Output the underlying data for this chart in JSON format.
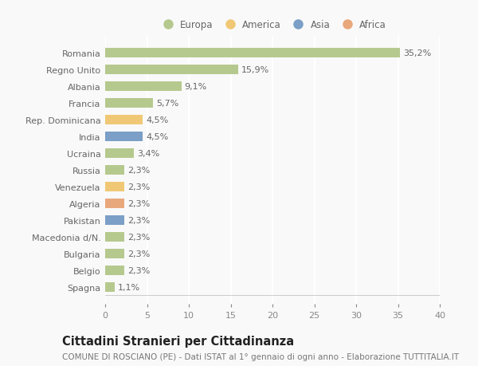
{
  "categories": [
    "Romania",
    "Regno Unito",
    "Albania",
    "Francia",
    "Rep. Dominicana",
    "India",
    "Ucraina",
    "Russia",
    "Venezuela",
    "Algeria",
    "Pakistan",
    "Macedonia d/N.",
    "Bulgaria",
    "Belgio",
    "Spagna"
  ],
  "values": [
    35.2,
    15.9,
    9.1,
    5.7,
    4.5,
    4.5,
    3.4,
    2.3,
    2.3,
    2.3,
    2.3,
    2.3,
    2.3,
    2.3,
    1.1
  ],
  "labels": [
    "35,2%",
    "15,9%",
    "9,1%",
    "5,7%",
    "4,5%",
    "4,5%",
    "3,4%",
    "2,3%",
    "2,3%",
    "2,3%",
    "2,3%",
    "2,3%",
    "2,3%",
    "2,3%",
    "1,1%"
  ],
  "colors": [
    "#b5c98e",
    "#b5c98e",
    "#b5c98e",
    "#b5c98e",
    "#f0c875",
    "#7b9fc7",
    "#b5c98e",
    "#b5c98e",
    "#f0c875",
    "#e8a87c",
    "#7b9fc7",
    "#b5c98e",
    "#b5c98e",
    "#b5c98e",
    "#b5c98e"
  ],
  "legend_labels": [
    "Europa",
    "America",
    "Asia",
    "Africa"
  ],
  "legend_colors": [
    "#b5c98e",
    "#f0c875",
    "#7b9fc7",
    "#e8a87c"
  ],
  "title": "Cittadini Stranieri per Cittadinanza",
  "subtitle": "COMUNE DI ROSCIANO (PE) - Dati ISTAT al 1° gennaio di ogni anno - Elaborazione TUTTITALIA.IT",
  "xlim": [
    0,
    40
  ],
  "xticks": [
    0,
    5,
    10,
    15,
    20,
    25,
    30,
    35,
    40
  ],
  "background_color": "#f9f9f9",
  "grid_color": "#ffffff",
  "label_fontsize": 8,
  "tick_fontsize": 8,
  "title_fontsize": 10.5,
  "subtitle_fontsize": 7.5,
  "bar_height": 0.55
}
